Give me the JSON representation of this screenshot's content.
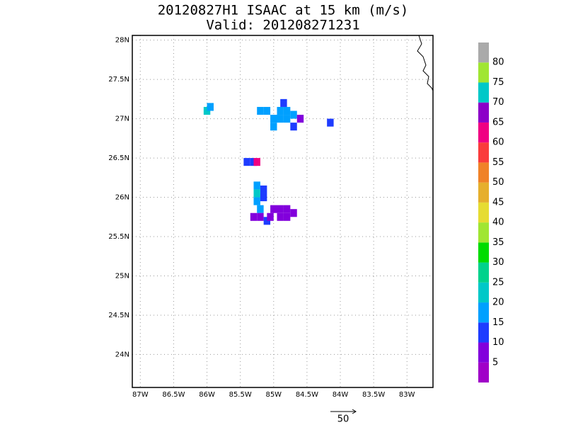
{
  "map": {
    "title": "20120827H1 ISAAC at 15 km (m/s)",
    "subtitle": "Valid: 201208271231",
    "xlim": [
      -87.12,
      -82.61
    ],
    "ylim": [
      23.58,
      28.06
    ],
    "xticks": [
      {
        "value": -87,
        "label": "87W"
      },
      {
        "value": -86.5,
        "label": "86.5W"
      },
      {
        "value": -86,
        "label": "86W"
      },
      {
        "value": -85.5,
        "label": "85.5W"
      },
      {
        "value": -85,
        "label": "85W"
      },
      {
        "value": -84.5,
        "label": "84.5W"
      },
      {
        "value": -84,
        "label": "84W"
      },
      {
        "value": -83.5,
        "label": "83.5W"
      },
      {
        "value": -83,
        "label": "83W"
      }
    ],
    "yticks": [
      {
        "value": 24,
        "label": "24N"
      },
      {
        "value": 24.5,
        "label": "24.5N"
      },
      {
        "value": 25,
        "label": "25N"
      },
      {
        "value": 25.5,
        "label": "25.5N"
      },
      {
        "value": 26,
        "label": "26N"
      },
      {
        "value": 26.5,
        "label": "26.5N"
      },
      {
        "value": 27,
        "label": "27N"
      },
      {
        "value": 27.5,
        "label": "27.5N"
      },
      {
        "value": 28,
        "label": "28N"
      }
    ],
    "grid": true,
    "colorbar": {
      "range": [
        0,
        85
      ],
      "ticks": [
        5,
        10,
        15,
        20,
        25,
        30,
        35,
        40,
        45,
        50,
        55,
        60,
        65,
        70,
        75,
        80
      ],
      "colors": [
        "#a000c8",
        "#8200dc",
        "#1e3cff",
        "#00a0ff",
        "#00c8c8",
        "#00d28c",
        "#00dc00",
        "#a0e632",
        "#e6dc32",
        "#e6af2d",
        "#f08228",
        "#fa3c3c",
        "#f00082",
        "#8c00c8",
        "#00c8c8",
        "#a0e632",
        "#aaaaaa"
      ]
    },
    "cells": [
      [
        -86.0,
        27.1,
        22
      ],
      [
        -85.95,
        27.15,
        17
      ],
      [
        -85.2,
        27.1,
        17
      ],
      [
        -85.1,
        27.1,
        17
      ],
      [
        -85.0,
        27.0,
        17
      ],
      [
        -84.9,
        27.0,
        17
      ],
      [
        -84.9,
        27.1,
        17
      ],
      [
        -84.8,
        27.1,
        17
      ],
      [
        -84.8,
        27.0,
        17
      ],
      [
        -84.7,
        27.05,
        17
      ],
      [
        -84.6,
        27.0,
        7
      ],
      [
        -84.7,
        26.9,
        12
      ],
      [
        -85.0,
        26.9,
        17
      ],
      [
        -84.85,
        27.2,
        12
      ],
      [
        -84.15,
        26.95,
        12
      ],
      [
        -85.4,
        26.45,
        12
      ],
      [
        -85.3,
        26.45,
        12
      ],
      [
        -85.25,
        26.45,
        62
      ],
      [
        -85.25,
        26.15,
        17
      ],
      [
        -85.15,
        26.1,
        12
      ],
      [
        -85.25,
        26.05,
        22
      ],
      [
        -85.15,
        26.0,
        12
      ],
      [
        -85.25,
        25.95,
        17
      ],
      [
        -85.2,
        25.85,
        17
      ],
      [
        -85.2,
        25.75,
        7
      ],
      [
        -85.1,
        25.7,
        12
      ],
      [
        -85.3,
        25.75,
        7
      ],
      [
        -85.0,
        25.85,
        7
      ],
      [
        -84.9,
        25.85,
        7
      ],
      [
        -84.8,
        25.85,
        7
      ],
      [
        -84.7,
        25.8,
        7
      ],
      [
        -84.9,
        25.75,
        7
      ],
      [
        -84.8,
        25.75,
        7
      ],
      [
        -85.05,
        25.75,
        7
      ]
    ],
    "vector_reference": "50"
  }
}
